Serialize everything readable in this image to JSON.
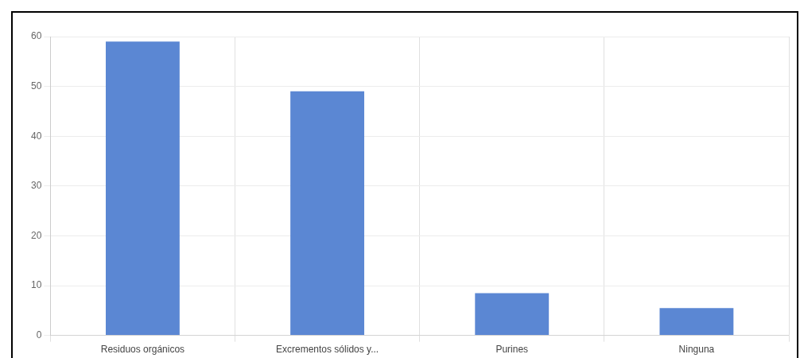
{
  "chart_data": {
    "type": "bar",
    "categories": [
      "Residuos orgánicos",
      "Excrementos sólidos y...",
      "Purines",
      "Ninguna"
    ],
    "values": [
      59,
      49,
      8.5,
      5.5
    ],
    "color": "#5b87d3",
    "ylim": [
      0,
      60
    ],
    "yticks": [
      0,
      10,
      20,
      30,
      40,
      50,
      60
    ],
    "grid": true,
    "legend": false
  }
}
